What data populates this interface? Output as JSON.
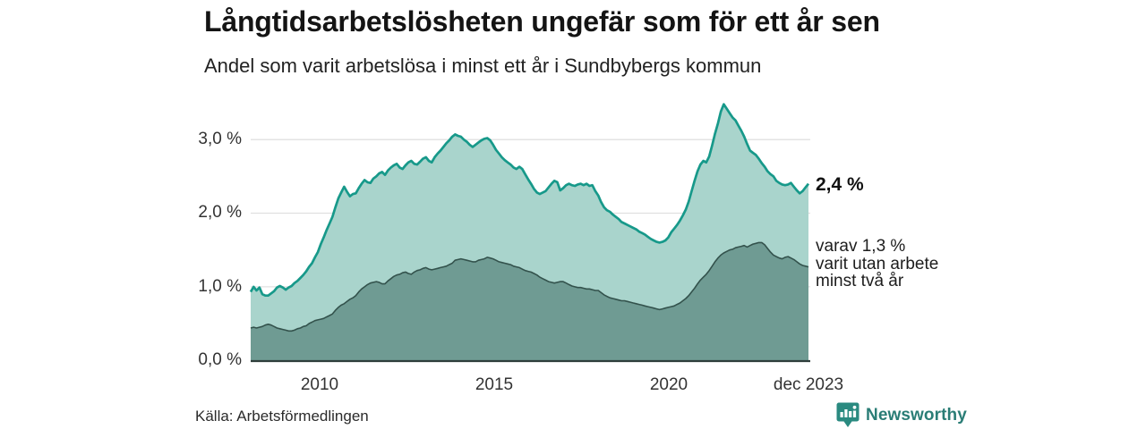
{
  "header": {
    "title": "Långtidsarbetslösheten ungefär som för ett år sen",
    "subtitle": "Andel som varit arbetslösa i minst ett år i Sundbybergs kommun"
  },
  "chart_data": {
    "type": "area",
    "title": "Långtidsarbetslösheten ungefär som för ett år sen",
    "subtitle": "Andel som varit arbetslösa i minst ett år i Sundbybergs kommun",
    "unit": "%",
    "x_start": "2008-01",
    "x_end": "2023-12",
    "x_ticks": [
      "2010",
      "2015",
      "2020",
      "dec 2023"
    ],
    "y_ticks": [
      "3,0 %",
      "2,0 %",
      "1,0 %",
      "0,0 %"
    ],
    "y_gridline_values": [
      3.0,
      2.0,
      1.0
    ],
    "ylim": [
      0,
      3.6
    ],
    "grid": true,
    "legend_position": "right-annotations",
    "series": [
      {
        "name": "Andel arbetslösa minst ett år",
        "end_value_label": "2,4 %",
        "end_value": 2.4,
        "values": [
          0.93,
          1.0,
          0.95,
          0.99,
          0.9,
          0.88,
          0.88,
          0.91,
          0.94,
          0.99,
          1.01,
          0.99,
          0.96,
          0.99,
          1.01,
          1.05,
          1.08,
          1.12,
          1.16,
          1.21,
          1.27,
          1.32,
          1.4,
          1.47,
          1.58,
          1.67,
          1.77,
          1.86,
          1.95,
          2.08,
          2.2,
          2.28,
          2.36,
          2.29,
          2.23,
          2.26,
          2.27,
          2.34,
          2.4,
          2.45,
          2.42,
          2.41,
          2.47,
          2.5,
          2.54,
          2.56,
          2.52,
          2.58,
          2.62,
          2.65,
          2.67,
          2.62,
          2.6,
          2.65,
          2.69,
          2.71,
          2.67,
          2.66,
          2.7,
          2.74,
          2.76,
          2.71,
          2.69,
          2.76,
          2.81,
          2.85,
          2.9,
          2.95,
          2.99,
          3.04,
          3.07,
          3.05,
          3.04,
          3.0,
          2.97,
          2.93,
          2.9,
          2.93,
          2.96,
          2.99,
          3.01,
          3.02,
          2.99,
          2.93,
          2.86,
          2.81,
          2.76,
          2.72,
          2.69,
          2.66,
          2.62,
          2.6,
          2.63,
          2.6,
          2.53,
          2.46,
          2.4,
          2.33,
          2.28,
          2.26,
          2.28,
          2.3,
          2.35,
          2.4,
          2.44,
          2.42,
          2.31,
          2.34,
          2.38,
          2.4,
          2.38,
          2.37,
          2.39,
          2.4,
          2.38,
          2.4,
          2.37,
          2.38,
          2.3,
          2.24,
          2.15,
          2.08,
          2.04,
          2.02,
          1.98,
          1.95,
          1.92,
          1.88,
          1.86,
          1.84,
          1.82,
          1.8,
          1.78,
          1.75,
          1.73,
          1.71,
          1.68,
          1.65,
          1.63,
          1.61,
          1.6,
          1.61,
          1.63,
          1.67,
          1.74,
          1.79,
          1.84,
          1.9,
          1.97,
          2.05,
          2.16,
          2.3,
          2.44,
          2.57,
          2.66,
          2.71,
          2.69,
          2.77,
          2.92,
          3.08,
          3.22,
          3.38,
          3.48,
          3.42,
          3.36,
          3.3,
          3.26,
          3.19,
          3.12,
          3.04,
          2.94,
          2.85,
          2.82,
          2.79,
          2.74,
          2.68,
          2.63,
          2.57,
          2.53,
          2.5,
          2.44,
          2.41,
          2.39,
          2.38,
          2.39,
          2.41,
          2.36,
          2.31,
          2.27,
          2.3,
          2.35,
          2.4
        ]
      },
      {
        "name": "varav utan arbete minst två år",
        "end_value_label_lines": [
          "varav 1,3 %",
          "varit utan arbete",
          "minst två år"
        ],
        "end_value": 1.3,
        "values": [
          0.44,
          0.45,
          0.44,
          0.45,
          0.46,
          0.48,
          0.49,
          0.48,
          0.46,
          0.44,
          0.43,
          0.42,
          0.41,
          0.4,
          0.4,
          0.41,
          0.43,
          0.44,
          0.46,
          0.47,
          0.5,
          0.52,
          0.54,
          0.55,
          0.56,
          0.57,
          0.59,
          0.61,
          0.63,
          0.68,
          0.72,
          0.75,
          0.77,
          0.8,
          0.83,
          0.85,
          0.88,
          0.93,
          0.97,
          1.0,
          1.03,
          1.05,
          1.06,
          1.07,
          1.06,
          1.04,
          1.04,
          1.08,
          1.11,
          1.14,
          1.16,
          1.17,
          1.19,
          1.2,
          1.18,
          1.17,
          1.2,
          1.22,
          1.23,
          1.25,
          1.26,
          1.24,
          1.23,
          1.24,
          1.25,
          1.26,
          1.27,
          1.28,
          1.3,
          1.32,
          1.36,
          1.37,
          1.38,
          1.37,
          1.36,
          1.35,
          1.34,
          1.34,
          1.36,
          1.37,
          1.38,
          1.4,
          1.39,
          1.38,
          1.36,
          1.34,
          1.33,
          1.32,
          1.31,
          1.3,
          1.28,
          1.27,
          1.26,
          1.24,
          1.22,
          1.21,
          1.2,
          1.18,
          1.16,
          1.13,
          1.11,
          1.09,
          1.07,
          1.06,
          1.05,
          1.06,
          1.07,
          1.07,
          1.05,
          1.03,
          1.01,
          1.0,
          0.99,
          0.99,
          0.98,
          0.97,
          0.97,
          0.96,
          0.95,
          0.95,
          0.92,
          0.89,
          0.87,
          0.85,
          0.84,
          0.83,
          0.82,
          0.81,
          0.81,
          0.8,
          0.79,
          0.78,
          0.77,
          0.76,
          0.75,
          0.74,
          0.73,
          0.72,
          0.71,
          0.7,
          0.69,
          0.7,
          0.71,
          0.72,
          0.73,
          0.74,
          0.76,
          0.78,
          0.81,
          0.84,
          0.88,
          0.93,
          0.98,
          1.04,
          1.09,
          1.13,
          1.17,
          1.22,
          1.28,
          1.34,
          1.39,
          1.43,
          1.46,
          1.48,
          1.5,
          1.51,
          1.53,
          1.54,
          1.55,
          1.56,
          1.54,
          1.56,
          1.58,
          1.59,
          1.6,
          1.6,
          1.57,
          1.52,
          1.47,
          1.43,
          1.41,
          1.39,
          1.38,
          1.4,
          1.41,
          1.39,
          1.37,
          1.34,
          1.31,
          1.29,
          1.28,
          1.27
        ]
      }
    ],
    "colors": {
      "total_line": "#17998a",
      "total_fill": "#a9d4cc",
      "subset_line": "#33524c",
      "subset_fill": "#6f9b93",
      "gridline": "#e0e0e0",
      "axis_line": "#2f3e3b"
    }
  },
  "annotations": {
    "total_label": "2,4 %",
    "subset_lines": [
      "varav 1,3 %",
      "varit utan arbete",
      "minst två år"
    ]
  },
  "x_axis": {
    "t2010": "2010",
    "t2015": "2015",
    "t2020": "2020",
    "t2023": "dec 2023"
  },
  "source": {
    "label": "Källa: Arbetsförmedlingen"
  },
  "logo": {
    "label": "Newsworthy",
    "color": "#2a7d76",
    "icon_color": "#2a8a80"
  }
}
